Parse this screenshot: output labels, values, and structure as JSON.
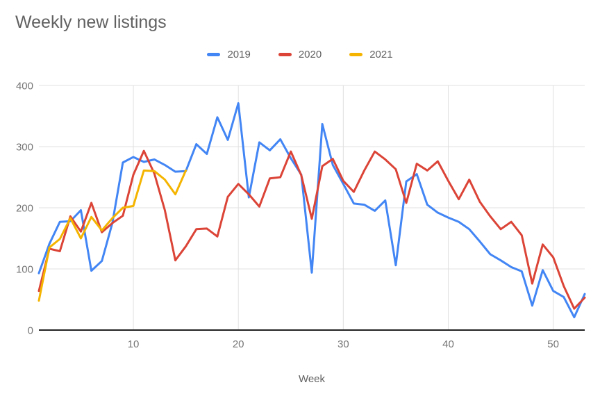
{
  "title": "Weekly new listings",
  "legend": {
    "position": "top",
    "items": [
      "2019",
      "2020",
      "2021"
    ]
  },
  "colors": {
    "series_2019": "#4285f4",
    "series_2020": "#db4437",
    "series_2021": "#f4b400",
    "gridline": "#e0e0e0",
    "baseline": "#212121",
    "tick_text": "#757575",
    "title_text": "#616161"
  },
  "chart_data": {
    "type": "line",
    "title": "Weekly new listings",
    "xlabel": "Week",
    "ylabel": "",
    "xlim": [
      1,
      53
    ],
    "ylim": [
      0,
      400
    ],
    "x_ticks": [
      10,
      20,
      30,
      40,
      50
    ],
    "y_ticks": [
      0,
      100,
      200,
      300,
      400
    ],
    "grid": true,
    "legend_position": "top",
    "x": [
      1,
      2,
      3,
      4,
      5,
      6,
      7,
      8,
      9,
      10,
      11,
      12,
      13,
      14,
      15,
      16,
      17,
      18,
      19,
      20,
      21,
      22,
      23,
      24,
      25,
      26,
      27,
      28,
      29,
      30,
      31,
      32,
      33,
      34,
      35,
      36,
      37,
      38,
      39,
      40,
      41,
      42,
      43,
      44,
      45,
      46,
      47,
      48,
      49,
      50,
      51,
      52,
      53
    ],
    "series": [
      {
        "name": "2019",
        "color": "#4285f4",
        "values": [
          93,
          141,
          177,
          178,
          196,
          97,
          113,
          175,
          274,
          283,
          275,
          279,
          270,
          259,
          260,
          304,
          288,
          348,
          311,
          371,
          217,
          307,
          294,
          312,
          281,
          254,
          94,
          337,
          270,
          239,
          207,
          205,
          195,
          212,
          106,
          243,
          255,
          205,
          192,
          184,
          177,
          165,
          145,
          124,
          114,
          103,
          96,
          40,
          98,
          64,
          54,
          21,
          59
        ]
      },
      {
        "name": "2020",
        "color": "#db4437",
        "values": [
          64,
          133,
          129,
          186,
          161,
          208,
          160,
          175,
          187,
          254,
          293,
          256,
          196,
          114,
          137,
          165,
          166,
          153,
          218,
          239,
          222,
          202,
          248,
          250,
          292,
          253,
          182,
          268,
          280,
          244,
          226,
          261,
          292,
          279,
          263,
          208,
          272,
          261,
          276,
          244,
          214,
          246,
          210,
          186,
          165,
          177,
          155,
          76,
          140,
          119,
          72,
          35,
          53
        ]
      },
      {
        "name": "2021",
        "color": "#f4b400",
        "values": [
          48,
          135,
          149,
          183,
          150,
          185,
          163,
          183,
          200,
          203,
          261,
          260,
          246,
          222,
          261
        ]
      }
    ]
  }
}
